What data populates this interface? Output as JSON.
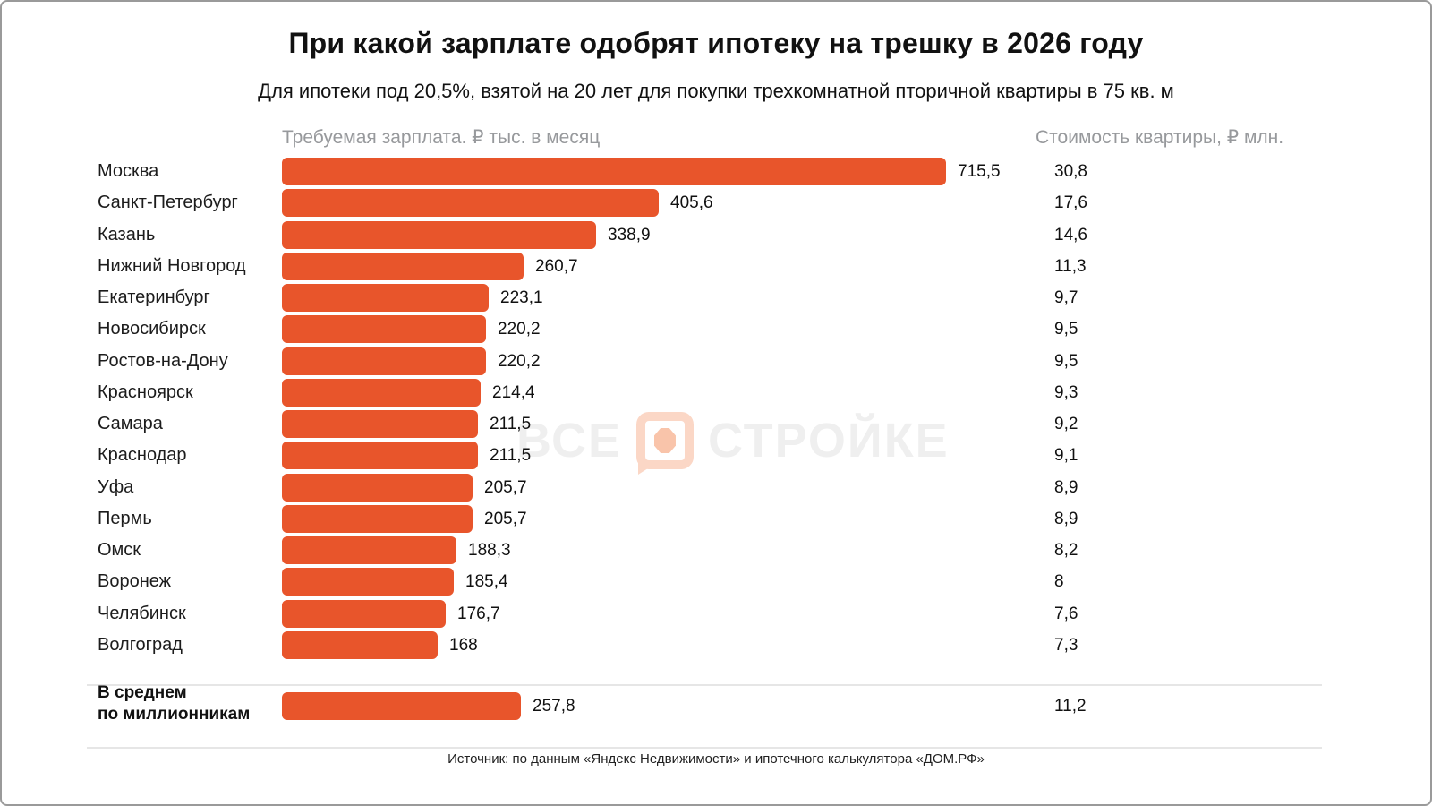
{
  "header": {
    "title": "При какой зарплате одобрят ипотеку на трешку в 2026 году",
    "subtitle": "Для ипотеки под 20,5%, взятой на 20 лет для покупки трехкомнатной пторичной квартиры в 75 кв. м"
  },
  "columns": {
    "salary_header": "Требуемая зарплата. ₽ тыс. в месяц",
    "price_header": "Стоимость квартиры, ₽ млн."
  },
  "chart_data": {
    "type": "bar",
    "orientation": "horizontal",
    "title": "При какой зарплате одобрят ипотеку на трешку в 2026 году",
    "bar_color": "#E8552B",
    "axis_max": 715.5,
    "grid": false,
    "categories": [
      "Москва",
      "Санкт-Петербург",
      "Казань",
      "Нижний Новгород",
      "Екатеринбург",
      "Новосибирск",
      "Ростов-на-Дону",
      "Красноярск",
      "Самара",
      "Краснодар",
      "Уфа",
      "Пермь",
      "Омск",
      "Воронеж",
      "Челябинск",
      "Волгоград"
    ],
    "series": [
      {
        "name": "Требуемая зарплата, ₽ тыс. в месяц",
        "values": [
          715.5,
          405.6,
          338.9,
          260.7,
          223.1,
          220.2,
          220.2,
          214.4,
          211.5,
          211.5,
          205.7,
          205.7,
          188.3,
          185.4,
          176.7,
          168
        ],
        "labels": [
          "715,5",
          "405,6",
          "338,9",
          "260,7",
          "223,1",
          "220,2",
          "220,2",
          "214,4",
          "211,5",
          "211,5",
          "205,7",
          "205,7",
          "188,3",
          "185,4",
          "176,7",
          "168"
        ]
      },
      {
        "name": "Стоимость квартиры, ₽ млн.",
        "values": [
          30.8,
          17.6,
          14.6,
          11.3,
          9.7,
          9.5,
          9.5,
          9.3,
          9.2,
          9.1,
          8.9,
          8.9,
          8.2,
          8,
          7.6,
          7.3
        ],
        "labels": [
          "30,8",
          "17,6",
          "14,6",
          "11,3",
          "9,7",
          "9,5",
          "9,5",
          "9,3",
          "9,2",
          "9,1",
          "8,9",
          "8,9",
          "8,2",
          "8",
          "7,6",
          "7,3"
        ]
      }
    ],
    "summary": {
      "label_line1": "В среднем",
      "label_line2": "по миллионникам",
      "salary_value": 257.8,
      "salary_label": "257,8",
      "price_value": 11.2,
      "price_label": "11,2"
    }
  },
  "watermark": {
    "part1": "ВСЕ",
    "part2": "СТРОЙКЕ"
  },
  "footer": {
    "source": "Источник: по данным «Яндекс Недвижимости» и ипотечного калькулятора «ДОМ.РФ»"
  }
}
